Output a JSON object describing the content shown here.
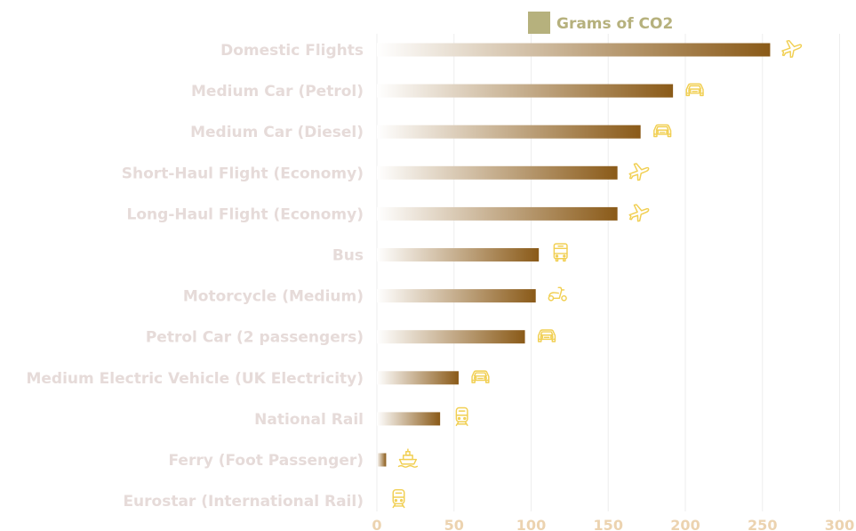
{
  "chart_data": {
    "type": "bar",
    "orientation": "horizontal",
    "title": "",
    "xlabel": "",
    "ylabel": "",
    "categories": [
      "Domestic Flights",
      "Medium Car (Petrol)",
      "Medium Car (Diesel)",
      "Short-Haul Flight (Economy)",
      "Long-Haul Flight (Economy)",
      "Bus",
      "Motorcycle (Medium)",
      "Petrol Car (2 passengers)",
      "Medium Electric Vehicle (UK Electricity)",
      "National Rail",
      "Ferry (Foot Passenger)",
      "Eurostar (International Rail)"
    ],
    "series": [
      {
        "name": "Grams of CO2",
        "values": [
          255,
          192,
          171,
          156,
          156,
          105,
          103,
          96,
          53,
          41,
          6,
          0
        ]
      }
    ],
    "icons": [
      "airplane-icon",
      "car-icon",
      "car-icon",
      "airplane-icon",
      "airplane-icon",
      "bus-icon",
      "scooter-icon",
      "car-icon",
      "car-icon",
      "train-icon",
      "ship-icon",
      "train-icon"
    ],
    "xlim": [
      0,
      300
    ],
    "xticks": [
      0,
      50,
      100,
      150,
      200,
      250,
      300
    ],
    "grid": "vertical",
    "legend_position": "top",
    "colors": {
      "bar_start": "#ffffff",
      "bar_end": "#8a5a18",
      "legend_swatch": "#b6b17d",
      "legend_text": "#b6b17d",
      "label_text": "#e6dbd9",
      "tick_text": "#ecd3b0",
      "icon": "#f1cf52",
      "grid": "#eeeeee"
    }
  }
}
